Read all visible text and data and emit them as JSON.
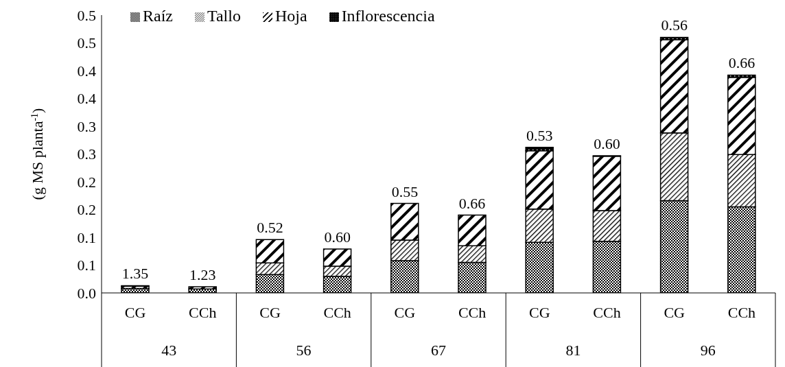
{
  "chart_data": {
    "type": "bar",
    "stacked": true,
    "ylabel": "(g MS planta$^{-1}$)",
    "categories": [
      "CG",
      "CCh",
      "CG",
      "CCh",
      "CG",
      "CCh",
      "CG",
      "CCh",
      "CG",
      "CCh"
    ],
    "annotations": [
      "43",
      "56",
      "67",
      "81",
      "96",
      "1.35",
      "1.23",
      "0.52",
      "0.60",
      "0.55",
      "0.66",
      "0.53",
      "0.60",
      "0.56",
      "0.66"
    ],
    "series": [
      {
        "name": "Raíz",
        "color": "#000000",
        "values": [
          0.008,
          0.007,
          0.033,
          0.03,
          0.058,
          0.055,
          0.091,
          0.093,
          0.166,
          0.155
        ]
      },
      {
        "name": "Tallo",
        "color": "#000000",
        "values": [
          null,
          null,
          0.021,
          0.018,
          0.037,
          0.03,
          0.06,
          0.055,
          0.122,
          0.094
        ]
      },
      {
        "name": "Hoja",
        "color": "#000000",
        "values": [
          0.004,
          0.004,
          0.042,
          0.031,
          0.066,
          0.055,
          0.105,
          0.098,
          0.168,
          0.139
        ]
      },
      {
        "name": "Inflorescencia",
        "color": "#000000",
        "values": [
          0.001,
          null,
          null,
          null,
          null,
          null,
          0.006,
          0.001,
          0.004,
          0.004
        ]
      }
    ],
    "ylim": [
      0,
      0.5
    ],
    "yticks": [
      {
        "value": 0,
        "label": "0.0"
      },
      {
        "value": 0.05,
        "label": "0.1"
      },
      {
        "value": 0.1,
        "label": "0.1"
      },
      {
        "value": 0.15,
        "label": "0.2"
      },
      {
        "value": 0.2,
        "label": "0.2"
      },
      {
        "value": 0.25,
        "label": "0.3"
      },
      {
        "value": 0.3,
        "label": "0.3"
      },
      {
        "value": 0.35,
        "label": "0.4"
      },
      {
        "value": 0.4,
        "label": "0.4"
      },
      {
        "value": 0.45,
        "label": "0.5"
      },
      {
        "value": 0.5,
        "label": "0.5"
      }
    ],
    "legend": "top",
    "grid": false
  }
}
